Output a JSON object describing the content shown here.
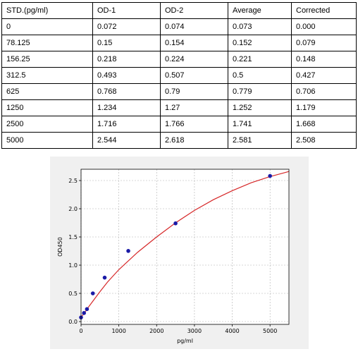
{
  "table": {
    "headers": [
      "STD.(pg/ml)",
      "OD-1",
      "OD-2",
      "Average",
      "Corrected"
    ],
    "rows": [
      [
        "0",
        "0.072",
        "0.074",
        "0.073",
        "0.000"
      ],
      [
        "78.125",
        "0.15",
        "0.154",
        "0.152",
        "0.079"
      ],
      [
        "156.25",
        "0.218",
        "0.224",
        "0.221",
        "0.148"
      ],
      [
        "312.5",
        "0.493",
        "0.507",
        "0.5",
        "0.427"
      ],
      [
        "625",
        "0.768",
        "0.79",
        "0.779",
        "0.706"
      ],
      [
        "1250",
        "1.234",
        "1.27",
        "1.252",
        "1.179"
      ],
      [
        "2500",
        "1.716",
        "1.766",
        "1.741",
        "1.668"
      ],
      [
        "5000",
        "2.544",
        "2.618",
        "2.581",
        "2.508"
      ]
    ]
  },
  "chart_data": {
    "type": "scatter",
    "xlabel": "pg/ml",
    "ylabel": "OD450",
    "xlim": [
      0,
      5500
    ],
    "ylim": [
      -0.05,
      2.7
    ],
    "xticks": [
      0,
      1000,
      2000,
      3000,
      4000,
      5000
    ],
    "yticks": [
      0.0,
      0.5,
      1.0,
      1.5,
      2.0,
      2.5
    ],
    "xtick_labels": [
      "0",
      "1000",
      "2000",
      "3000",
      "4000",
      "5000"
    ],
    "ytick_labels": [
      "0.0",
      "0.5",
      "1.0",
      "1.5",
      "2.0",
      "2.5"
    ],
    "grid": true,
    "series": [
      {
        "points": [
          [
            0,
            0.073
          ],
          [
            78.125,
            0.152
          ],
          [
            156.25,
            0.221
          ],
          [
            312.5,
            0.5
          ],
          [
            625,
            0.779
          ],
          [
            1250,
            1.252
          ],
          [
            2500,
            1.741
          ],
          [
            5000,
            2.581
          ]
        ]
      }
    ],
    "fit_curve": {
      "x": [
        0,
        50,
        100,
        200,
        300,
        500,
        700,
        1000,
        1500,
        2000,
        2500,
        3000,
        3500,
        4000,
        4500,
        5000,
        5500
      ],
      "y": [
        0.07,
        0.12,
        0.16,
        0.26,
        0.35,
        0.53,
        0.7,
        0.92,
        1.23,
        1.5,
        1.75,
        1.97,
        2.16,
        2.32,
        2.46,
        2.57,
        2.66
      ]
    },
    "colors": {
      "points": "#1a1aa6",
      "curve": "#d62728",
      "grid": "#b0b0b0",
      "background": "#ffffff",
      "frame": "#f0f0f0"
    }
  }
}
